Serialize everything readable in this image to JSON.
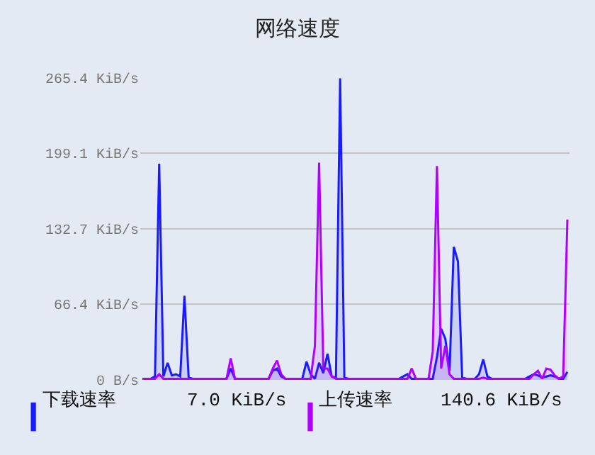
{
  "chart_data": {
    "type": "area",
    "title": "网络速度",
    "categories": [
      null,
      null,
      null,
      null,
      null,
      null,
      null,
      null,
      null,
      null,
      null,
      null,
      null,
      null,
      null,
      null,
      null,
      null,
      null,
      null,
      null,
      null,
      null,
      null,
      null,
      null,
      null,
      null,
      null,
      null,
      null,
      null,
      null,
      null,
      null,
      null,
      null,
      null,
      null,
      null,
      null,
      null,
      null,
      null,
      null,
      null,
      null,
      null,
      null,
      null,
      null,
      null,
      null,
      null,
      null,
      null,
      null,
      null,
      null,
      null,
      null,
      null,
      null,
      null,
      null,
      null,
      null,
      null,
      null,
      null,
      null,
      null,
      null,
      null,
      null,
      null,
      null,
      null,
      null,
      null,
      null,
      null,
      null,
      null,
      null,
      null,
      null,
      null,
      null,
      null,
      null,
      null,
      null,
      null,
      null,
      null,
      null,
      null,
      null,
      null,
      null,
      null
    ],
    "series": [
      {
        "name": "下载速率",
        "color": "#1a1aff",
        "values": [
          1,
          1,
          1,
          3,
          190,
          3,
          15,
          4,
          5,
          3,
          74,
          2,
          1,
          1,
          1,
          1,
          1,
          1,
          1,
          1,
          1,
          10,
          1,
          1,
          1,
          1,
          1,
          1,
          1,
          1,
          1,
          8,
          10,
          3,
          1,
          1,
          1,
          1,
          1,
          16,
          5,
          1,
          15,
          6,
          23,
          3,
          2,
          265,
          2,
          1,
          1,
          1,
          1,
          1,
          1,
          1,
          1,
          1,
          1,
          1,
          1,
          1,
          3,
          5,
          1,
          1,
          1,
          1,
          1,
          1,
          20,
          45,
          36,
          8,
          117,
          104,
          2,
          1,
          1,
          1,
          5,
          18,
          3,
          1,
          1,
          1,
          1,
          1,
          1,
          1,
          1,
          1,
          3,
          5,
          4,
          2,
          3,
          4,
          3,
          1,
          1,
          7
        ]
      },
      {
        "name": "上传速率",
        "color": "#b000ff",
        "values": [
          1,
          1,
          1,
          1,
          5,
          1,
          1,
          1,
          1,
          1,
          1,
          1,
          1,
          1,
          1,
          1,
          1,
          1,
          1,
          1,
          1,
          19,
          1,
          1,
          1,
          1,
          1,
          1,
          1,
          1,
          1,
          10,
          17,
          5,
          1,
          1,
          1,
          1,
          1,
          1,
          1,
          30,
          191,
          10,
          10,
          3,
          1,
          1,
          1,
          1,
          1,
          1,
          1,
          1,
          1,
          1,
          1,
          1,
          1,
          1,
          1,
          1,
          1,
          1,
          10,
          1,
          1,
          1,
          1,
          25,
          188,
          10,
          30,
          5,
          1,
          1,
          1,
          1,
          1,
          1,
          1,
          2,
          1,
          1,
          1,
          1,
          1,
          1,
          1,
          1,
          1,
          1,
          1,
          5,
          8,
          1,
          10,
          9,
          4,
          1,
          3,
          141
        ]
      }
    ],
    "ylim": [
      0,
      265.4
    ],
    "yticks": [
      {
        "value": 0,
        "label": "0 B/s"
      },
      {
        "value": 66.4,
        "label": "66.4 KiB/s"
      },
      {
        "value": 132.7,
        "label": "132.7 KiB/s"
      },
      {
        "value": 199.1,
        "label": "199.1 KiB/s"
      },
      {
        "value": 265.4,
        "label": "265.4 KiB/s"
      }
    ],
    "grid": "y",
    "legend": "bottom",
    "line_style": "solid",
    "marker": "none",
    "annotations": [
      "7.0 KiB/s",
      "140.6 KiB/s"
    ]
  }
}
